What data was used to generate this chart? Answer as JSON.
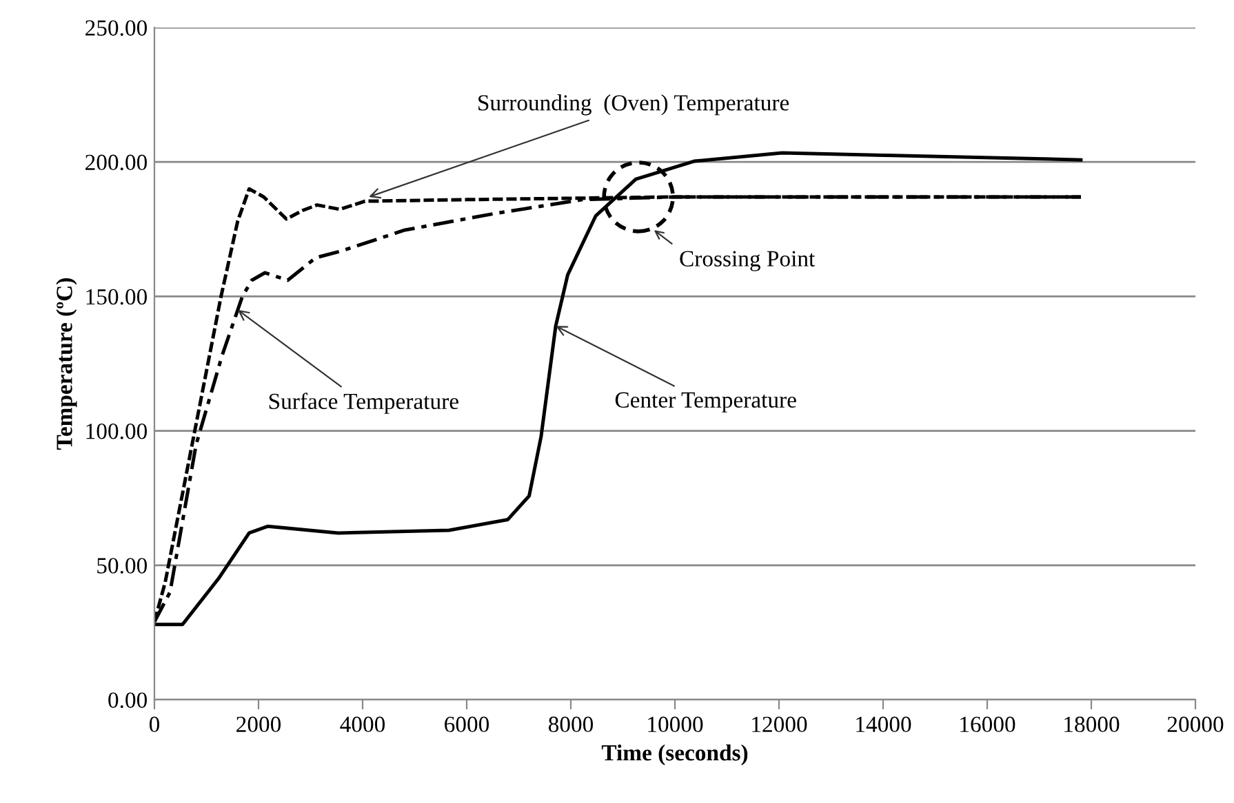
{
  "chart_data": {
    "type": "line",
    "xlabel": "Time (seconds)",
    "ylabel": "Temperature (ºC)",
    "xlim": [
      0,
      20000
    ],
    "xticks": [
      0,
      2000,
      4000,
      6000,
      8000,
      10000,
      12000,
      14000,
      16000,
      18000,
      20000
    ],
    "ylim": [
      0,
      250
    ],
    "yticks": [
      {
        "value": 0,
        "label": "0.00"
      },
      {
        "value": 50,
        "label": "50.00"
      },
      {
        "value": 100,
        "label": "100.00"
      },
      {
        "value": 150,
        "label": "150.00"
      },
      {
        "value": 200,
        "label": "200.00"
      },
      {
        "value": 250,
        "label": "250.00"
      }
    ],
    "grid": "y",
    "legend": false,
    "marker": "none",
    "series": [
      {
        "color": "#000000",
        "line_style": "dotted",
        "x": [
          0,
          205,
          1280,
          1600,
          1820,
          2100,
          2535,
          2850,
          3124,
          3560,
          4046,
          6000,
          10000,
          14000,
          17800
        ],
        "values": [
          29,
          43.5,
          150,
          178,
          190,
          187,
          178.8,
          182,
          184,
          182.4,
          185.4,
          186,
          187,
          187,
          187
        ]
      },
      {
        "color": "#000000",
        "line_style": "dashed",
        "x": [
          0,
          300,
          800,
          1300,
          1690,
          1870,
          2125,
          2560,
          3100,
          3610,
          4815,
          6530,
          8220,
          10000,
          14000,
          17800
        ],
        "values": [
          29,
          40,
          94.8,
          128,
          150,
          156,
          158.8,
          156,
          164.4,
          167,
          174.7,
          180.8,
          186,
          187,
          187,
          187
        ]
      },
      {
        "color": "#000000",
        "line_style": "solid",
        "x": [
          0,
          540,
          1230,
          1820,
          2180,
          3530,
          5660,
          6790,
          7200,
          7430,
          7710,
          7940,
          8480,
          9250,
          10370,
          12060,
          14200,
          17800
        ],
        "values": [
          28,
          28,
          45,
          62,
          64.5,
          62,
          63,
          67,
          75.8,
          98,
          139,
          158,
          180,
          193.6,
          200.3,
          203.4,
          202.4,
          200.8
        ]
      }
    ],
    "annotations": [
      {
        "text": "Surrounding  (Oven) Temperature",
        "x": 4120,
        "y": 187
      },
      {
        "text": "Surface Temperature",
        "x": 1600,
        "y": 145
      },
      {
        "text": "Center Temperature",
        "x": 7710,
        "y": 139
      },
      "Crossing Point"
    ]
  }
}
